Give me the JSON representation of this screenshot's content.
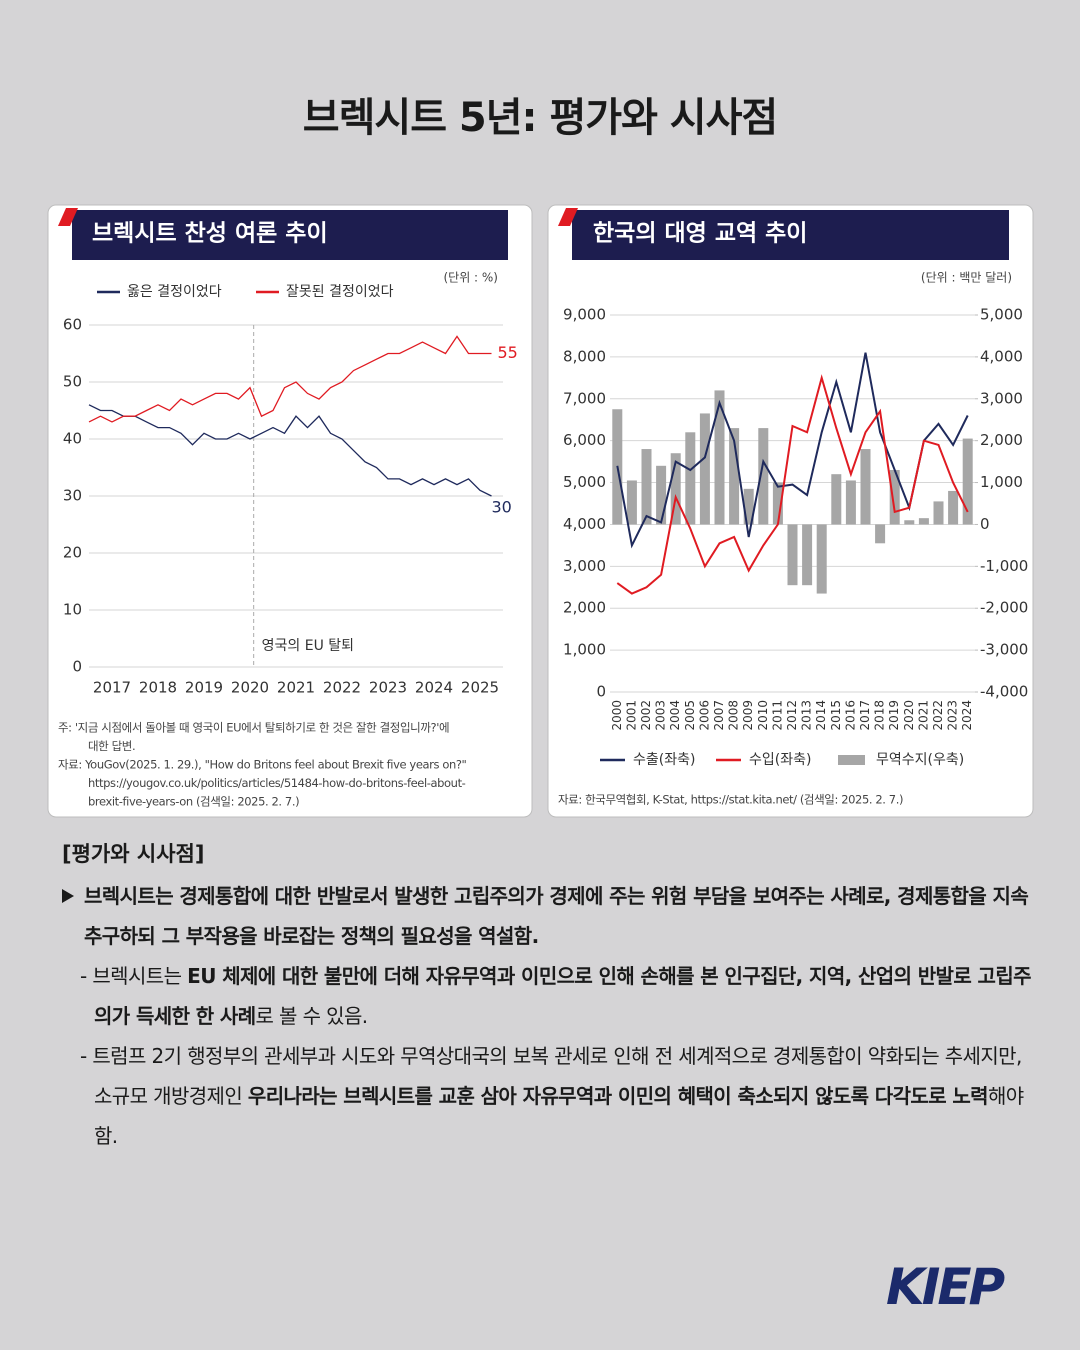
{
  "title": "브렉시트 5년: 평가와 시사점",
  "chart_data": [
    {
      "type": "line",
      "title": "브렉시트 찬성 여론 추이",
      "unit": "(단위 : %)",
      "x": [
        2016.5,
        2016.75,
        2017,
        2017.25,
        2017.5,
        2017.75,
        2018,
        2018.25,
        2018.5,
        2018.75,
        2019,
        2019.25,
        2019.5,
        2019.75,
        2020,
        2020.25,
        2020.5,
        2020.75,
        2021,
        2021.25,
        2021.5,
        2021.75,
        2022,
        2022.25,
        2022.5,
        2022.75,
        2023,
        2023.25,
        2023.5,
        2023.75,
        2024,
        2024.25,
        2024.5,
        2024.75,
        2025,
        2025.25
      ],
      "series": [
        {
          "name": "옳은 결정이었다",
          "color": "#1f2a5c",
          "values": [
            46,
            45,
            45,
            44,
            44,
            43,
            42,
            42,
            41,
            39,
            41,
            40,
            40,
            41,
            40,
            41,
            42,
            41,
            44,
            42,
            44,
            41,
            40,
            38,
            36,
            35,
            33,
            33,
            32,
            33,
            32,
            33,
            32,
            33,
            31,
            30
          ]
        },
        {
          "name": "잘못된 결정이었다",
          "color": "#e01b22",
          "values": [
            43,
            44,
            43,
            44,
            44,
            45,
            46,
            45,
            47,
            46,
            47,
            48,
            48,
            47,
            49,
            44,
            45,
            49,
            50,
            48,
            47,
            49,
            50,
            52,
            53,
            54,
            55,
            55,
            56,
            57,
            56,
            55,
            58,
            55,
            55,
            55
          ]
        }
      ],
      "xlim": [
        2016.5,
        2025.5
      ],
      "xticks": [
        2017,
        2018,
        2019,
        2020,
        2021,
        2022,
        2023,
        2024,
        2025
      ],
      "ylim": [
        0,
        60
      ],
      "yticks": [
        0,
        10,
        20,
        30,
        40,
        50,
        60
      ],
      "grid": true,
      "annotation": {
        "text": "영국의 EU 탈퇴",
        "x": 2020.08
      },
      "notes": [
        "주: '지금 시점에서 돌아볼 때 영국이 EU에서 탈퇴하기로 한 것은 잘한 결정입니까?'에",
        "대한 답변.",
        "자료: YouGov(2025. 1. 29.), \"How do Britons feel about Brexit five years on?\"",
        "https://yougov.co.uk/politics/articles/51484-how-do-britons-feel-about-",
        "brexit-five-years-on (검색일: 2025. 2. 7.)"
      ]
    },
    {
      "type": "combo",
      "title": "한국의 대영 교역 추이",
      "unit": "(단위 : 백만 달러)",
      "categories": [
        "2000",
        "2001",
        "2002",
        "2003",
        "2004",
        "2005",
        "2006",
        "2007",
        "2008",
        "2009",
        "2010",
        "2011",
        "2012",
        "2013",
        "2014",
        "2015",
        "2016",
        "2017",
        "2018",
        "2019",
        "2020",
        "2021",
        "2022",
        "2023",
        "2024"
      ],
      "series": [
        {
          "name": "수출(좌축)",
          "kind": "line",
          "color": "#1f2a5c",
          "values": [
            5400,
            3500,
            4200,
            4050,
            5500,
            5300,
            5600,
            6900,
            6000,
            3700,
            5500,
            4900,
            4950,
            4700,
            6200,
            7400,
            6200,
            8100,
            6200,
            5300,
            4400,
            6000,
            6400,
            5900,
            6600
          ]
        },
        {
          "name": "수입(좌축)",
          "kind": "line",
          "color": "#e01b22",
          "values": [
            2600,
            2350,
            2500,
            2800,
            4650,
            3900,
            3000,
            3550,
            3700,
            2900,
            3500,
            4000,
            6350,
            6200,
            7500,
            6300,
            5200,
            6200,
            6700,
            4300,
            4400,
            6000,
            5900,
            5000,
            4300
          ]
        },
        {
          "name": "무역수지(우축)",
          "kind": "bar",
          "axis": "y2",
          "color": "#a6a6a6",
          "values": [
            2750,
            1050,
            1800,
            1400,
            1700,
            2200,
            2650,
            3200,
            2300,
            850,
            2300,
            1000,
            -1450,
            -1450,
            -1650,
            1200,
            1050,
            1800,
            -450,
            1300,
            100,
            150,
            550,
            800,
            2050
          ]
        }
      ],
      "ylim": [
        0,
        9000
      ],
      "yticks": [
        0,
        {
          "value": 1000,
          "label": "1,000"
        },
        {
          "value": 2000,
          "label": "2,000"
        },
        {
          "value": 3000,
          "label": "3,000"
        },
        {
          "value": 4000,
          "label": "4,000"
        },
        {
          "value": 5000,
          "label": "5,000"
        },
        {
          "value": 6000,
          "label": "6,000"
        },
        {
          "value": 7000,
          "label": "7,000"
        },
        {
          "value": 8000,
          "label": "8,000"
        },
        {
          "value": 9000,
          "label": "9,000"
        }
      ],
      "y2lim": [
        -4000,
        5000
      ],
      "y2ticks": [
        {
          "value": -4000,
          "label": "-4,000"
        },
        {
          "value": -3000,
          "label": "-3,000"
        },
        {
          "value": -2000,
          "label": "-2,000"
        },
        {
          "value": -1000,
          "label": "-1,000"
        },
        0,
        {
          "value": 1000,
          "label": "1,000"
        },
        {
          "value": 2000,
          "label": "2,000"
        },
        {
          "value": 3000,
          "label": "3,000"
        },
        {
          "value": 4000,
          "label": "4,000"
        },
        {
          "value": 5000,
          "label": "5,000"
        }
      ],
      "grid": true,
      "notes": [
        "자료: 한국무역협회, K-Stat, https://stat.kita.net/ (검색일: 2025. 2. 7.)"
      ]
    }
  ],
  "section": {
    "title": "[평가와 시사점]",
    "paragraphs": [
      {
        "level": 1,
        "segments": [
          {
            "text": "브렉시트는 경제통합에 대한 반발로서 발생한 고립주의가 경제에 주는 위험 부담을 보여주는 사례로, 경제통합을 지속 추구하되 그 부작용을 바로잡는 정책의 필요성을 역설함.",
            "bold": true
          }
        ]
      },
      {
        "level": 2,
        "segments": [
          {
            "text": "- 브렉시트는 ",
            "bold": false
          },
          {
            "text": "EU 체제에 대한 불만에 더해 자유무역과 이민으로 인해 손해를 본 인구집단, 지역, 산업의 반발로 고립주의가 득세한 한 사례",
            "bold": true
          },
          {
            "text": "로 볼 수 있음.",
            "bold": false
          }
        ]
      },
      {
        "level": 2,
        "segments": [
          {
            "text": "- 트럼프 2기 행정부의 관세부과 시도와 무역상대국의 보복 관세로 인해 전 세계적으로 경제통합이 약화되는 추세지만, 소규모 개방경제인 ",
            "bold": false
          },
          {
            "text": "우리나라는 브렉시트를 교훈 삼아 자유무역과 이민의 혜택이 축소되지 않도록 다각도로 노력",
            "bold": true
          },
          {
            "text": "해야 함.",
            "bold": false
          }
        ]
      }
    ]
  },
  "logo": "KIEP"
}
